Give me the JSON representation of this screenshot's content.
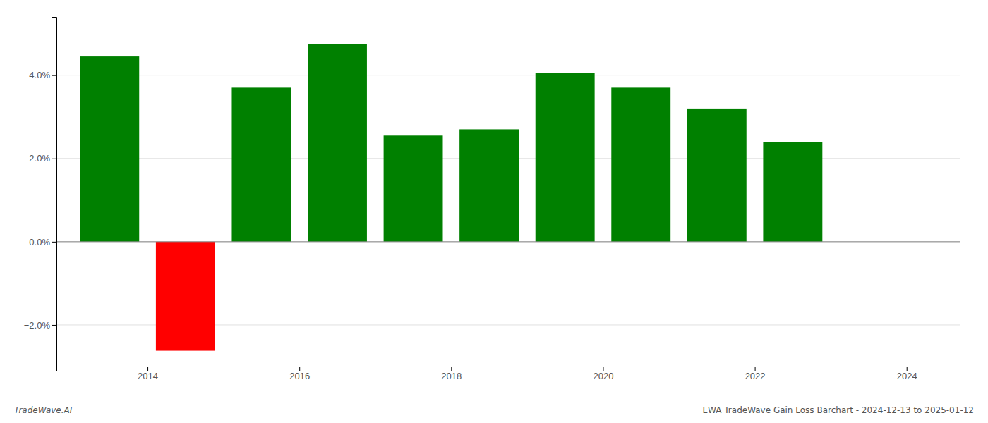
{
  "chart_data": {
    "type": "bar",
    "x": [
      2013.5,
      2014.5,
      2015.5,
      2016.5,
      2017.5,
      2018.5,
      2019.5,
      2020.5,
      2021.5,
      2022.5
    ],
    "values": [
      4.45,
      -2.62,
      3.7,
      4.75,
      2.55,
      2.7,
      4.05,
      3.7,
      3.2,
      2.4
    ],
    "colors": [
      "#008000",
      "#ff0000",
      "#008000",
      "#008000",
      "#008000",
      "#008000",
      "#008000",
      "#008000",
      "#008000",
      "#008000"
    ],
    "xlim": [
      2012.8,
      2024.7
    ],
    "xticks": [
      2014,
      2016,
      2018,
      2020,
      2022,
      2024
    ],
    "ylim": [
      -3.0,
      5.4
    ],
    "yticks": [
      {
        "value": -2.0,
        "label": "−2.0%"
      },
      {
        "value": 0.0,
        "label": "0.0%"
      },
      {
        "value": 2.0,
        "label": "2.0%"
      },
      {
        "value": 4.0,
        "label": "4.0%"
      }
    ],
    "grid": true,
    "annotations": [
      "TradeWave.AI",
      "EWA TradeWave Gain Loss Barchart - 2024-12-13 to 2025-01-12"
    ]
  }
}
